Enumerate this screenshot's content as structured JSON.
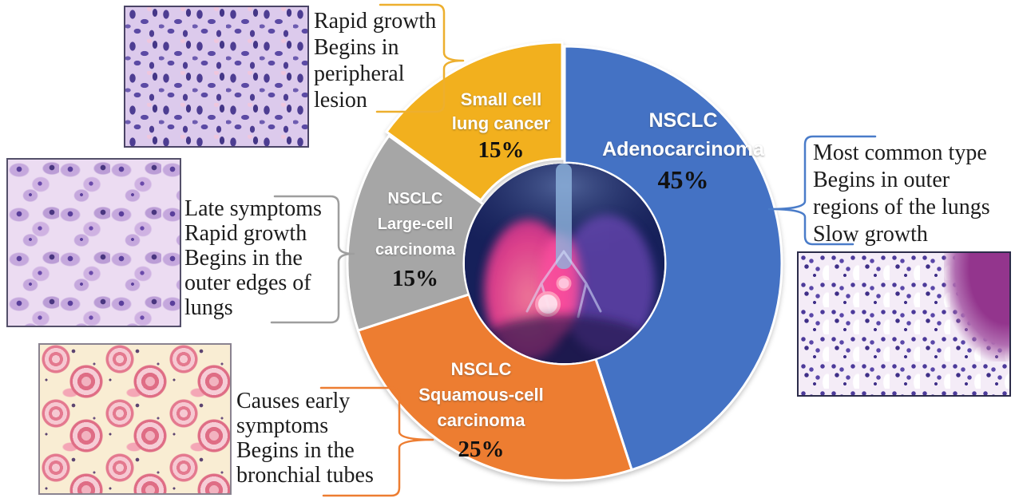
{
  "figure": {
    "background_color": "#ffffff",
    "subject": "Types of lung cancer donut chart with histology images"
  },
  "chart_data": {
    "type": "pie",
    "donut": true,
    "direction": "clockwise",
    "start_angle_deg": 0,
    "unit": "%",
    "label_placement": "inside",
    "donut_hole_ratio": 0.46,
    "center_image": "lungs-chest-illustration",
    "segments": [
      {
        "id": "nsclc-adenocarcinoma",
        "name_lines": [
          "NSCLC",
          "Adenocarcinoma"
        ],
        "value": 45,
        "percent_label": "45%",
        "color": "#4472C4"
      },
      {
        "id": "nsclc-squamous-cell",
        "name_lines": [
          "NSCLC",
          "Squamous-cell",
          "carcinoma"
        ],
        "value": 25,
        "percent_label": "25%",
        "color": "#ED7D31"
      },
      {
        "id": "nsclc-large-cell",
        "name_lines": [
          "NSCLC",
          "Large-cell",
          "carcinoma"
        ],
        "value": 15,
        "percent_label": "15%",
        "color": "#A6A6A6"
      },
      {
        "id": "small-cell",
        "name_lines": [
          "Small cell",
          "lung cancer"
        ],
        "value": 15,
        "percent_label": "15%",
        "color": "#F2B01E"
      }
    ]
  },
  "callouts": {
    "small_cell": {
      "target_segment": "small-cell",
      "lines": [
        "Rapid growth",
        "Begins in",
        "peripheral",
        "lesion"
      ],
      "brace_color": "#EDAF2E"
    },
    "adenocarcinoma": {
      "target_segment": "nsclc-adenocarcinoma",
      "lines": [
        "Most common type",
        "Begins in outer",
        "regions of the lungs",
        "Slow growth"
      ],
      "brace_color": "#4A7CC9"
    },
    "large_cell": {
      "target_segment": "nsclc-large-cell",
      "lines": [
        "Late symptoms",
        "Rapid growth",
        "Begins in the",
        "outer edges of",
        "lungs"
      ],
      "brace_color": "#9E9E9E"
    },
    "squamous": {
      "target_segment": "nsclc-squamous-cell",
      "lines": [
        "Causes early",
        "symptoms",
        "Begins in the",
        "bronchial tubes"
      ],
      "brace_color": "#ED7D31"
    }
  },
  "images": {
    "small_cell_histology": {
      "name": "small-cell-carcinoma-histology-image"
    },
    "large_cell_histology": {
      "name": "large-cell-carcinoma-histology-image"
    },
    "squamous_histology": {
      "name": "squamous-cell-carcinoma-histology-image"
    },
    "adeno_histology": {
      "name": "adenocarcinoma-histology-image"
    },
    "center": {
      "name": "lungs-chest-illustration"
    }
  }
}
